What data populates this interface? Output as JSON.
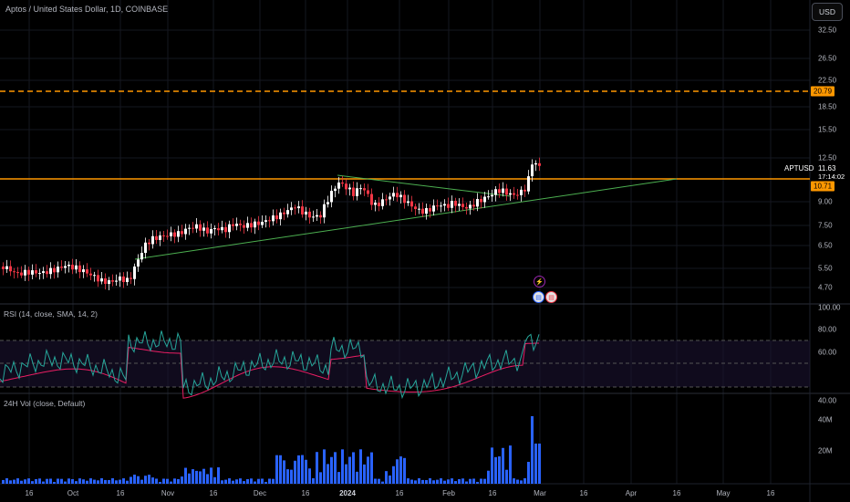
{
  "header": {
    "title": "Aptos / United States Dollar, 1D, COINBASE",
    "currency_button": "USD"
  },
  "price_axis": {
    "ticks": [
      "32.50",
      "26.50",
      "22.50",
      "18.50",
      "15.50",
      "12.50",
      "9.00",
      "7.50",
      "6.50",
      "5.50",
      "4.70"
    ]
  },
  "symbol": {
    "name": "APTUSD",
    "price": "11.63",
    "countdown": "17:14:02"
  },
  "levels": {
    "dashed_level": "20.79",
    "resistance_level": "10.71",
    "dashed_color": "#ff9800",
    "resistance_color": "#ff9800"
  },
  "rsi": {
    "label": "RSI (14, close, SMA, 14, 2)",
    "ticks": [
      "100.00",
      "80.00",
      "60.00",
      "40.00"
    ],
    "line_color": "#26a69a",
    "ma_color": "#e91e63"
  },
  "volume": {
    "label": "24H Vol (close, Default)",
    "ticks": [
      "40M",
      "20M"
    ],
    "bar_color": "#2962ff"
  },
  "time_axis": {
    "ticks": [
      {
        "label": "16",
        "bold": false
      },
      {
        "label": "Oct",
        "bold": false
      },
      {
        "label": "16",
        "bold": false
      },
      {
        "label": "Nov",
        "bold": false
      },
      {
        "label": "16",
        "bold": false
      },
      {
        "label": "Dec",
        "bold": false
      },
      {
        "label": "16",
        "bold": false
      },
      {
        "label": "2024",
        "bold": true
      },
      {
        "label": "16",
        "bold": false
      },
      {
        "label": "Feb",
        "bold": false
      },
      {
        "label": "16",
        "bold": false
      },
      {
        "label": "Mar",
        "bold": false
      },
      {
        "label": "16",
        "bold": false
      },
      {
        "label": "Apr",
        "bold": false
      },
      {
        "label": "16",
        "bold": false
      },
      {
        "label": "May",
        "bold": false
      },
      {
        "label": "16",
        "bold": false
      }
    ]
  },
  "colors": {
    "up": "#ffffff",
    "down": "#f23645",
    "trendline": "#4caf50",
    "background": "#000000"
  }
}
